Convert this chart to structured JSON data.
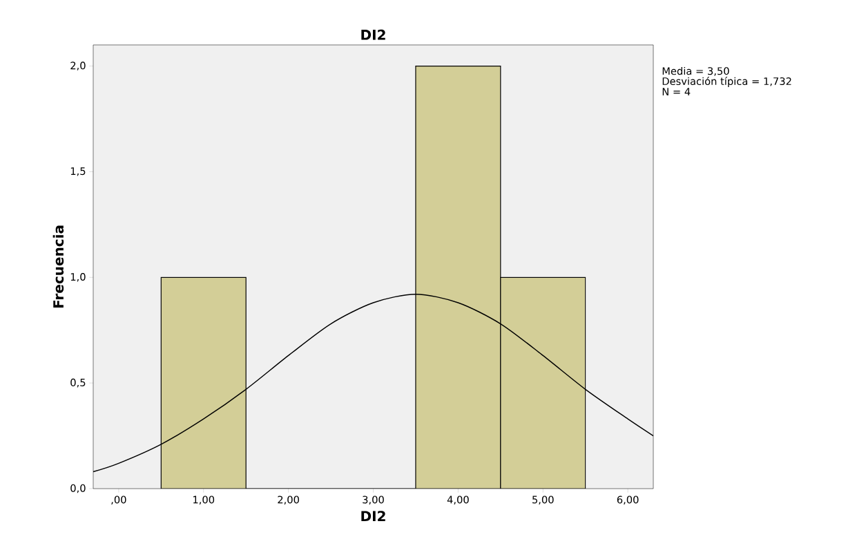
{
  "chart_data": {
    "type": "histogram",
    "title": "DI2",
    "xlabel": "DI2",
    "ylabel": "Frecuencia",
    "bins": [
      0.5,
      1.5,
      2.5,
      3.5,
      4.5,
      5.5
    ],
    "values": [
      1,
      0,
      0,
      2,
      1
    ],
    "color": "#d3ce97",
    "series": [
      {
        "type": "line",
        "color": "#000000",
        "x": [
          -0.3,
          0,
          0.5,
          1,
          1.5,
          2,
          2.5,
          3,
          3.5,
          4,
          4.5,
          5,
          5.5,
          6,
          6.3
        ],
        "values": [
          0.08,
          0.12,
          0.21,
          0.33,
          0.47,
          0.63,
          0.78,
          0.88,
          0.92,
          0.88,
          0.78,
          0.63,
          0.47,
          0.33,
          0.25
        ]
      }
    ],
    "xlim": [
      -0.3,
      6.3
    ],
    "ylim": [
      0,
      2.1
    ],
    "xticks": [
      {
        "value": 0,
        "label": ",00"
      },
      {
        "value": 1,
        "label": "1,00"
      },
      {
        "value": 2,
        "label": "2,00"
      },
      {
        "value": 3,
        "label": "3,00"
      },
      {
        "value": 4,
        "label": "4,00"
      },
      {
        "value": 5,
        "label": "5,00"
      },
      {
        "value": 6,
        "label": "6,00"
      }
    ],
    "yticks": [
      {
        "value": 0,
        "label": "0,0"
      },
      {
        "value": 0.5,
        "label": "0,5"
      },
      {
        "value": 1,
        "label": "1,0"
      },
      {
        "value": 1.5,
        "label": "1,5"
      },
      {
        "value": 2,
        "label": "2,0"
      }
    ],
    "grid": false,
    "annotations": [
      "Media = 3,50",
      "Desviación típica = 1,732",
      "N = 4"
    ]
  }
}
